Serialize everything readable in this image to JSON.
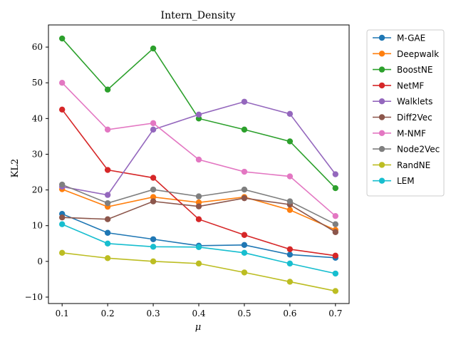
{
  "chart_data": {
    "type": "line",
    "title": "Intern_Density",
    "xlabel": "μ",
    "ylabel": "KL2",
    "x": [
      0.1,
      0.2,
      0.3,
      0.4,
      0.5,
      0.6,
      0.7
    ],
    "x_tick_labels": [
      "0.1",
      "0.2",
      "0.3",
      "0.4",
      "0.5",
      "0.6",
      "0.7"
    ],
    "y_ticks": [
      -10,
      0,
      10,
      20,
      30,
      40,
      50,
      60
    ],
    "y_tick_labels": [
      "−10",
      "0",
      "10",
      "20",
      "30",
      "40",
      "50",
      "60"
    ],
    "xlim": [
      0.07,
      0.73
    ],
    "ylim": [
      -11.8,
      66.2
    ],
    "grid": false,
    "legend_position": "outside-right",
    "series": [
      {
        "name": "M-GAE",
        "color": "#1f77b4",
        "values": [
          13.3,
          8.0,
          6.2,
          4.4,
          4.6,
          1.9,
          1.0
        ]
      },
      {
        "name": "Deepwalk",
        "color": "#ff7f0e",
        "values": [
          20.2,
          15.3,
          18.0,
          16.5,
          18.0,
          14.4,
          8.8
        ]
      },
      {
        "name": "BoostNE",
        "color": "#2ca02c",
        "values": [
          62.4,
          48.1,
          59.6,
          40.0,
          36.9,
          33.6,
          20.5
        ]
      },
      {
        "name": "NetMF",
        "color": "#d62728",
        "values": [
          42.5,
          25.6,
          23.4,
          11.8,
          7.4,
          3.4,
          1.6
        ]
      },
      {
        "name": "Walklets",
        "color": "#9467bd",
        "values": [
          20.9,
          18.6,
          36.9,
          41.1,
          44.7,
          41.3,
          24.4
        ]
      },
      {
        "name": "Diff2Vec",
        "color": "#8c564b",
        "values": [
          12.3,
          11.8,
          16.8,
          15.4,
          17.7,
          15.9,
          8.2
        ]
      },
      {
        "name": "M-NMF",
        "color": "#e377c2",
        "values": [
          50.0,
          36.9,
          38.7,
          28.5,
          25.1,
          23.8,
          12.7
        ]
      },
      {
        "name": "Node2Vec",
        "color": "#7f7f7f",
        "values": [
          21.5,
          16.3,
          20.1,
          18.2,
          20.1,
          16.8,
          10.4
        ]
      },
      {
        "name": "RandNE",
        "color": "#bcbd22",
        "values": [
          2.4,
          0.9,
          0.0,
          -0.6,
          -3.1,
          -5.7,
          -8.3
        ]
      },
      {
        "name": "LEM",
        "color": "#17becf",
        "values": [
          10.4,
          5.0,
          4.1,
          4.0,
          2.4,
          -0.6,
          -3.4
        ]
      }
    ]
  }
}
